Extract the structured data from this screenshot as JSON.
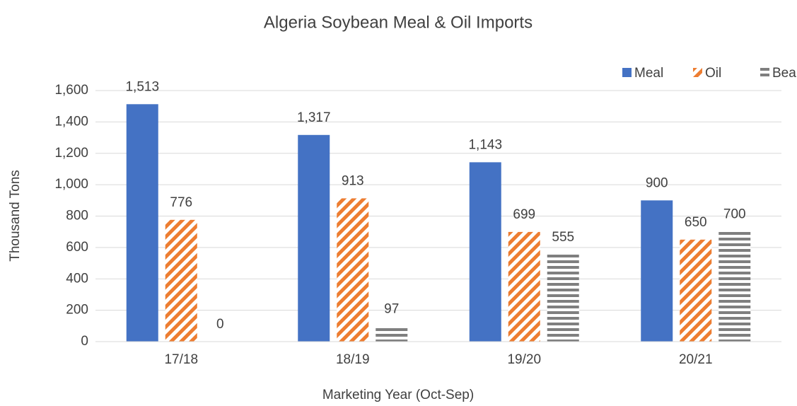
{
  "chart_data": {
    "type": "bar",
    "title": "Algeria Soybean Meal & Oil Imports",
    "x_label": "Marketing Year (Oct-Sep)",
    "y_label": "Thousand Tons",
    "categories": [
      "17/18",
      "18/19",
      "19/20",
      "20/21"
    ],
    "series": [
      {
        "name": "Meal",
        "color": "#4472c4",
        "pattern": "solid",
        "values": [
          1513,
          1317,
          1143,
          900
        ],
        "value_labels": [
          "1,513",
          "1,317",
          "1,143",
          "900"
        ]
      },
      {
        "name": "Oil",
        "color": "#ed7d31",
        "pattern": "diagonal",
        "values": [
          776,
          913,
          699,
          650
        ],
        "value_labels": [
          "776",
          "913",
          "699",
          "650"
        ]
      },
      {
        "name": "Beans",
        "color": "#7f7f7f",
        "pattern": "horizontal",
        "values": [
          0,
          97,
          555,
          700
        ],
        "value_labels": [
          "0",
          "97",
          "555",
          "700"
        ]
      }
    ],
    "ylim": [
      0,
      1600
    ],
    "yticks": [
      0,
      200,
      400,
      600,
      800,
      {
        "value": 1000,
        "label": "1,000"
      },
      {
        "value": 1200,
        "label": "1,200"
      },
      {
        "value": 1400,
        "label": "1,400"
      },
      {
        "value": 1600,
        "label": "1,600"
      }
    ],
    "grid": true,
    "legend": "top-right"
  }
}
